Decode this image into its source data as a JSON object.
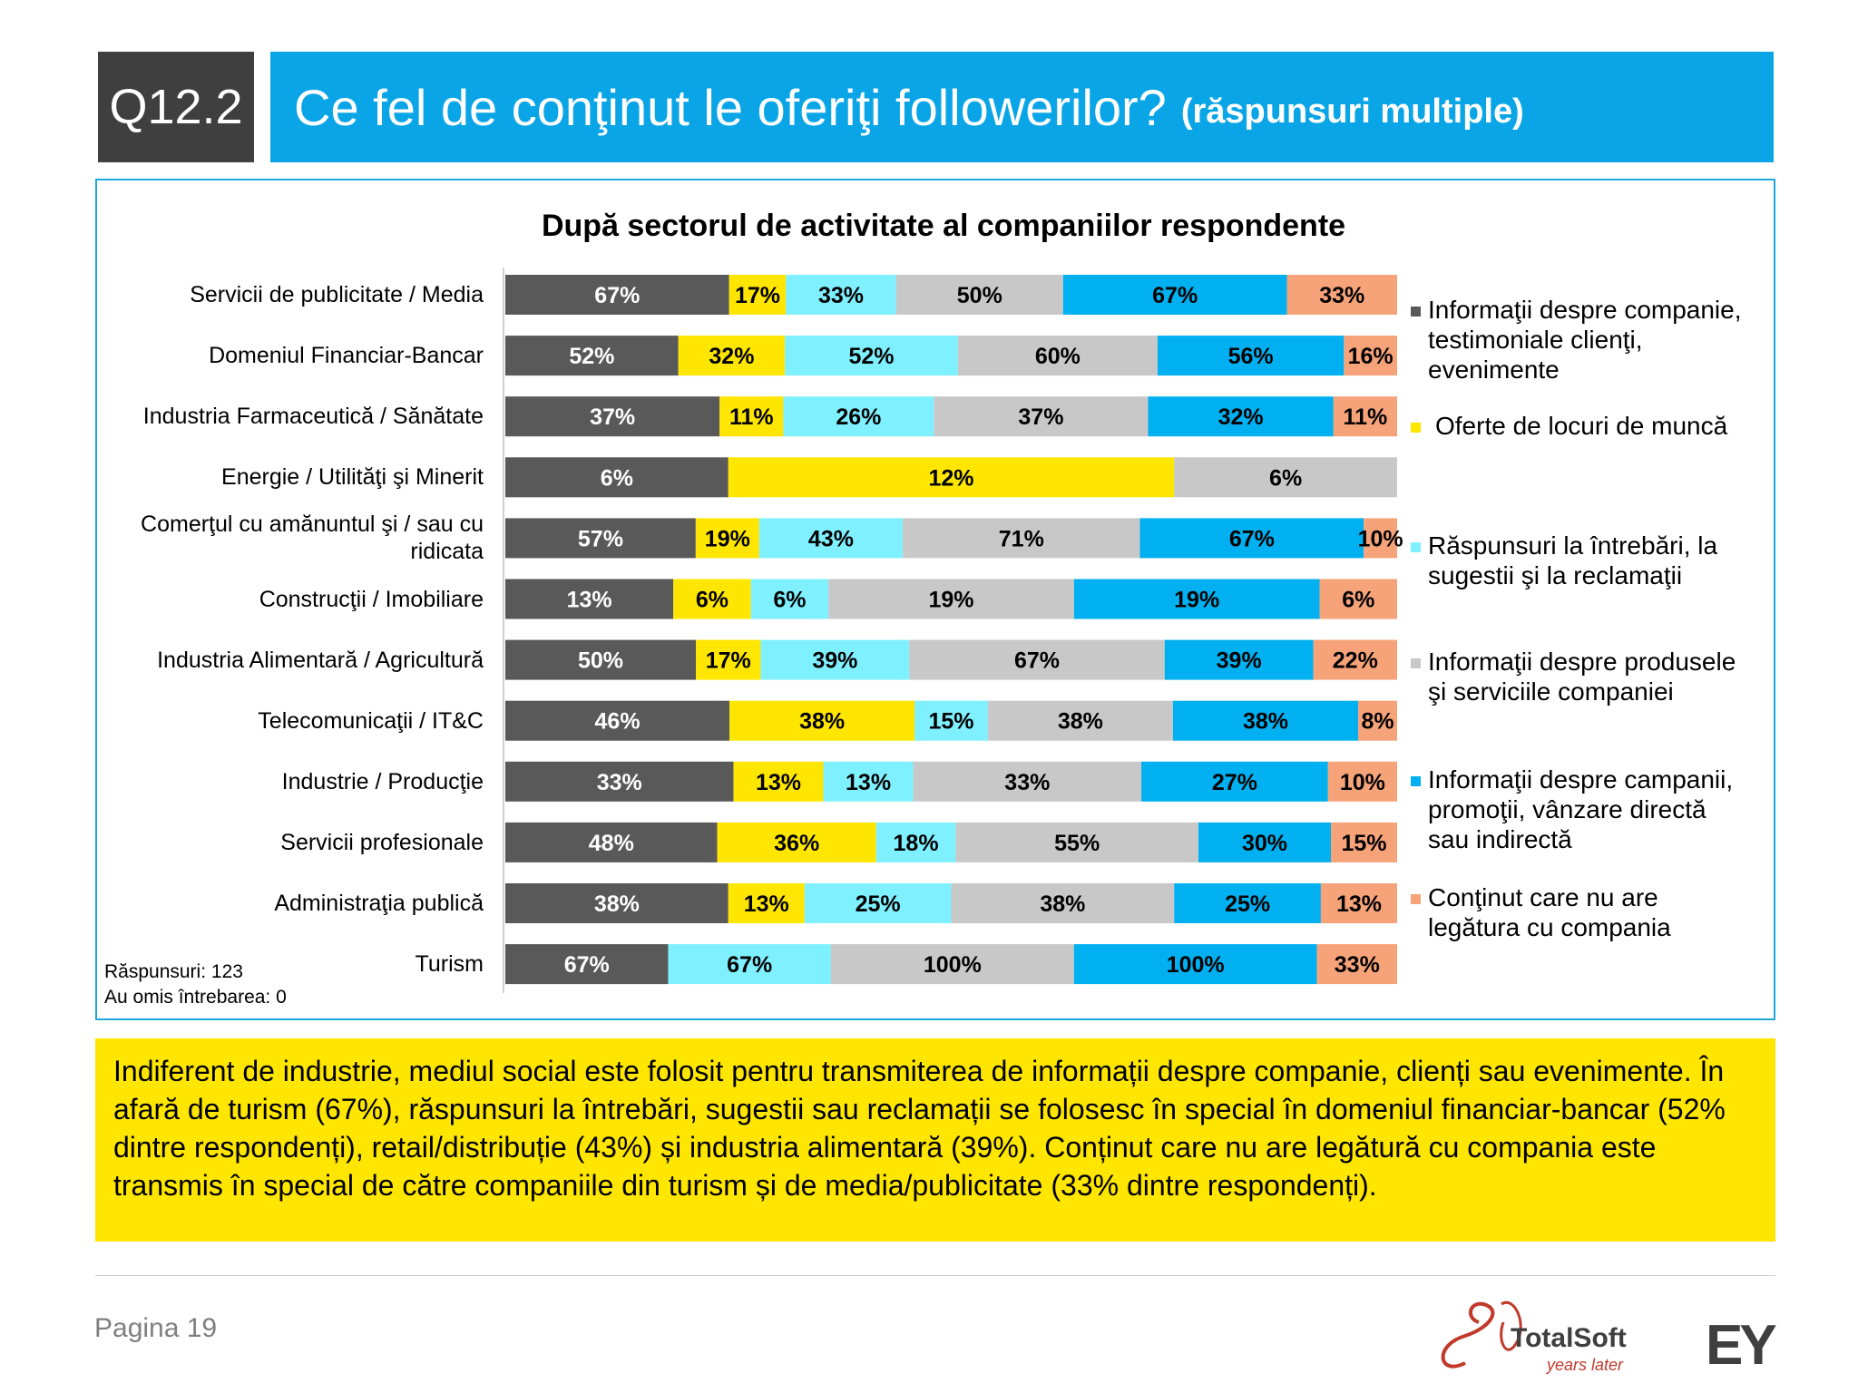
{
  "header": {
    "question_id": "Q12.2",
    "title": "Ce fel de conţinut le oferiţi followerilor?",
    "subtitle": "(răspunsuri multiple)"
  },
  "chart_data": {
    "type": "bar",
    "orientation": "horizontal-stacked",
    "title": "După sectorul de activitate al companiilor respondente",
    "categories": [
      "Servicii de publicitate / Media",
      "Domeniul Financiar-Bancar",
      "Industria Farmaceutică / Sănătate",
      "Energie / Utilităţi şi Minerit",
      "Comerţul cu amănuntul şi / sau cu ridicata",
      "Construcţii / Imobiliare",
      "Industria Alimentară / Agricultură",
      "Telecomunicaţii / IT&C",
      "Industrie / Producţie",
      "Servicii profesionale",
      "Administraţia publică",
      "Turism"
    ],
    "series": [
      {
        "name": "Informaţii despre companie, testimoniale clienţi, evenimente",
        "color": "#595959",
        "values": [
          67,
          52,
          37,
          6,
          57,
          13,
          50,
          46,
          33,
          48,
          38,
          67
        ]
      },
      {
        "name": "Oferte de locuri de muncă",
        "color": "#ffe600",
        "values": [
          17,
          32,
          11,
          12,
          19,
          6,
          17,
          38,
          13,
          36,
          13,
          0
        ]
      },
      {
        "name": "Răspunsuri la întrebări, la sugestii şi la reclamaţii",
        "color": "#7ff0ff",
        "values": [
          33,
          52,
          26,
          0,
          43,
          6,
          39,
          15,
          13,
          18,
          25,
          67
        ]
      },
      {
        "name": "Informaţii despre produsele şi serviciile companiei",
        "color": "#c8c8c8",
        "values": [
          50,
          60,
          37,
          6,
          71,
          19,
          67,
          38,
          33,
          55,
          38,
          100
        ]
      },
      {
        "name": "Informaţii despre campanii, promoţii, vânzare directă sau indirectă",
        "color": "#00b0f0",
        "values": [
          67,
          56,
          32,
          0,
          67,
          19,
          39,
          38,
          27,
          30,
          25,
          100
        ]
      },
      {
        "name": "Conţinut care nu are legătura cu compania",
        "color": "#f7a37a",
        "values": [
          33,
          16,
          11,
          0,
          10,
          6,
          22,
          8,
          10,
          15,
          13,
          33
        ]
      }
    ],
    "value_suffix": "%",
    "legend_position": "right",
    "grid": false
  },
  "legend_lines": [
    [
      "Informaţii despre companie,",
      "testimoniale clienţi,",
      "evenimente"
    ],
    [
      "Oferte de locuri de muncă"
    ],
    [
      "Răspunsuri la întrebări, la",
      "sugestii şi la reclamaţii"
    ],
    [
      "Informaţii despre produsele",
      "şi serviciile companiei"
    ],
    [
      "Informaţii despre campanii,",
      "promoţii, vânzare directă",
      "sau indirectă"
    ],
    [
      "Conţinut care nu are",
      "legătura cu compania"
    ]
  ],
  "footnote": {
    "responses": "Răspunsuri: 123",
    "skipped": "Au omis întrebarea: 0"
  },
  "summary": "Indiferent de industrie, mediul social este folosit pentru transmiterea de informații despre companie, clienți sau evenimente. În afară de turism (67%), răspunsuri la întrebări, sugestii sau reclamații se folosesc în special în domeniul financiar-bancar (52% dintre respondenți), retail/distribuție (43%) și industria alimentară (39%). Conținut care nu are legătură cu compania este transmis în special de către companiile din turism și de media/publicitate (33% dintre respondenți).",
  "footer": {
    "page": "Pagina 19",
    "logo_totalsoft": "TotalSoft",
    "logo_totalsoft_tagline": "years later",
    "logo_ey": "EY"
  }
}
